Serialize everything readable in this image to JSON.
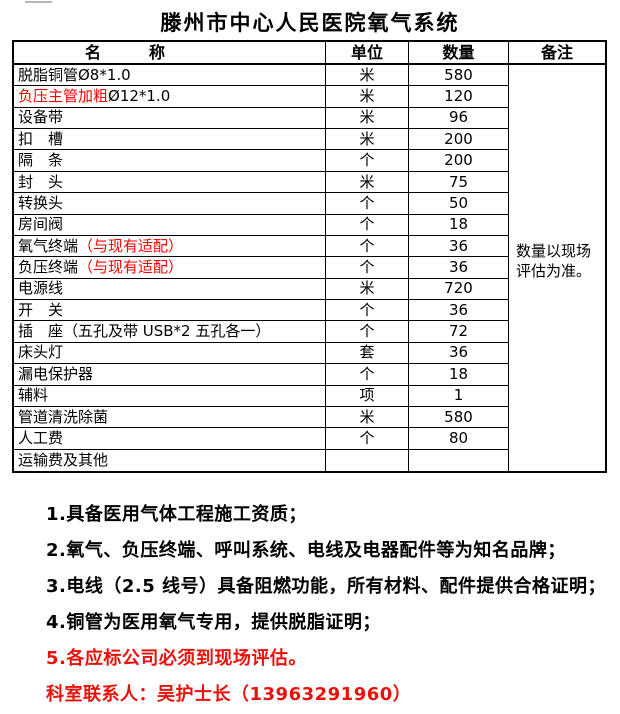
{
  "page": {
    "title": "滕州市中心人民医院氧气系统"
  },
  "colors": {
    "table_red": "#fe0000",
    "notes_red": "#e8120c",
    "border": "#000000",
    "artifact_gray": "#b5b5b5"
  },
  "table": {
    "headers": {
      "name": "名　　　称",
      "unit": "单位",
      "qty": "数量",
      "remark": "备注"
    },
    "remark_note": "数量以现场评估为准。",
    "rows": [
      {
        "name": [
          [
            "b",
            "脱脂铜管Ø8*1.0"
          ]
        ],
        "unit": "米",
        "qty": "580"
      },
      {
        "name": [
          [
            "r",
            "负压主管加粗"
          ],
          [
            "b",
            "Ø12*1.0"
          ]
        ],
        "unit": "米",
        "qty": "120"
      },
      {
        "name": [
          [
            "b",
            "设备带"
          ]
        ],
        "unit": "米",
        "qty": "96"
      },
      {
        "name": [
          [
            "b",
            "扣　槽"
          ]
        ],
        "unit": "米",
        "qty": "200"
      },
      {
        "name": [
          [
            "b",
            "隔　条"
          ]
        ],
        "unit": "个",
        "qty": "200"
      },
      {
        "name": [
          [
            "b",
            "封　头"
          ]
        ],
        "unit": "米",
        "qty": "75"
      },
      {
        "name": [
          [
            "b",
            "转换头"
          ]
        ],
        "unit": "个",
        "qty": "50"
      },
      {
        "name": [
          [
            "b",
            "房间阀"
          ]
        ],
        "unit": "个",
        "qty": "18"
      },
      {
        "name": [
          [
            "b",
            "氧气终端"
          ],
          [
            "r",
            "（与现有适配）"
          ]
        ],
        "unit": "个",
        "qty": "36"
      },
      {
        "name": [
          [
            "b",
            "负压终端"
          ],
          [
            "r",
            "（与现有适配）"
          ]
        ],
        "unit": "个",
        "qty": "36"
      },
      {
        "name": [
          [
            "b",
            "电源线"
          ]
        ],
        "unit": "米",
        "qty": "720"
      },
      {
        "name": [
          [
            "b",
            "开　关"
          ]
        ],
        "unit": "个",
        "qty": "36"
      },
      {
        "name": [
          [
            "b",
            "插　座（五孔及带 USB*2 五孔各一）"
          ]
        ],
        "unit": "个",
        "qty": "72"
      },
      {
        "name": [
          [
            "b",
            "床头灯"
          ]
        ],
        "unit": "套",
        "qty": "36"
      },
      {
        "name": [
          [
            "b",
            "漏电保护器"
          ]
        ],
        "unit": "个",
        "qty": "18"
      },
      {
        "name": [
          [
            "b",
            "辅料"
          ]
        ],
        "unit": "项",
        "qty": "1"
      },
      {
        "name": [
          [
            "b",
            "管道清洗除菌"
          ]
        ],
        "unit": "米",
        "qty": "580"
      },
      {
        "name": [
          [
            "b",
            "人工费"
          ]
        ],
        "unit": "个",
        "qty": "80"
      },
      {
        "name": [
          [
            "b",
            "运输费及其他"
          ]
        ],
        "unit": "",
        "qty": ""
      }
    ]
  },
  "notes": [
    {
      "text": "1.具备医用气体工程施工资质；",
      "color": "black"
    },
    {
      "text": "2.氧气、负压终端、呼叫系统、电线及电器配件等为知名品牌；",
      "color": "black"
    },
    {
      "text": "3.电线（2.5 线号）具备阻燃功能，所有材料、配件提供合格证明；",
      "color": "black"
    },
    {
      "text": "4.铜管为医用氧气专用，提供脱脂证明；",
      "color": "black"
    },
    {
      "text": "5.各应标公司必须到现场评估。",
      "color": "red"
    },
    {
      "text": "科室联系人：吴护士长（13963291960）",
      "color": "red"
    }
  ]
}
